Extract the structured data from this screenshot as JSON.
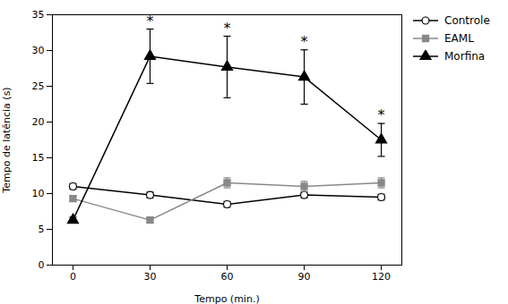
{
  "chart_data": {
    "type": "line",
    "x": [
      0,
      30,
      60,
      90,
      120
    ],
    "series": [
      {
        "name": "Controle",
        "color": "#000000",
        "marker": "circle-open",
        "values": [
          11.0,
          9.8,
          8.5,
          9.8,
          9.5
        ],
        "errors": [
          0.4,
          0.4,
          0.4,
          0.4,
          0.4
        ]
      },
      {
        "name": "EAML",
        "color": "#888888",
        "marker": "square",
        "values": [
          9.3,
          6.3,
          11.5,
          11.0,
          11.5
        ],
        "errors": [
          0.4,
          0.4,
          0.7,
          0.7,
          0.7
        ]
      },
      {
        "name": "Morfina",
        "color": "#000000",
        "marker": "triangle",
        "values": [
          6.3,
          29.2,
          27.7,
          26.3,
          17.5
        ],
        "errors": [
          0.4,
          3.8,
          4.3,
          3.8,
          2.3
        ]
      }
    ],
    "annotations": [
      {
        "series": "Morfina",
        "x": 30,
        "text": "*"
      },
      {
        "series": "Morfina",
        "x": 60,
        "text": "*"
      },
      {
        "series": "Morfina",
        "x": 90,
        "text": "*"
      },
      {
        "series": "Morfina",
        "x": 120,
        "text": "*"
      }
    ],
    "xlabel": "Tempo (min.)",
    "ylabel": "Tempo de latência (s)",
    "xlim": [
      -8,
      128
    ],
    "xticks": [
      0,
      30,
      60,
      90,
      120
    ],
    "ylim": [
      0,
      35
    ],
    "yticks": [
      0,
      5,
      10,
      15,
      20,
      25,
      30,
      35
    ],
    "grid": false,
    "legend": "right"
  }
}
